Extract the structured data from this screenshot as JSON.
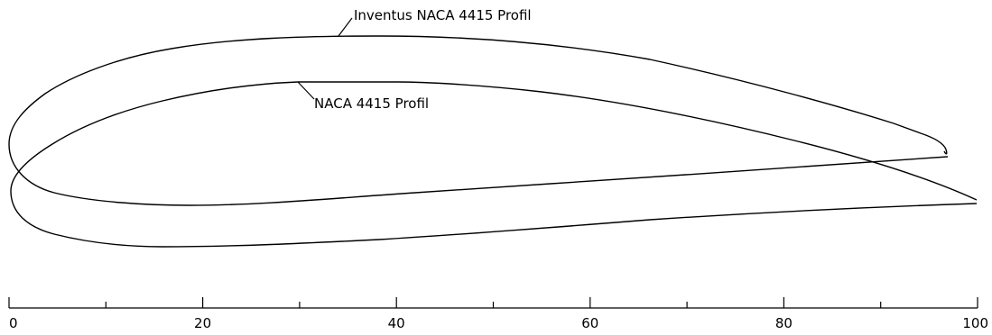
{
  "labels": {
    "outer_profile": "Inventus NACA 4415 Profil",
    "inner_profile": "NACA 4415 Profil"
  },
  "scale": {
    "min": 0,
    "max": 100,
    "major_ticks": [
      0,
      20,
      40,
      60,
      80,
      100
    ],
    "minor_ticks": [
      10,
      30,
      50,
      70,
      90
    ],
    "tick_labels": [
      "0",
      "20",
      "40",
      "60",
      "80",
      "100"
    ]
  },
  "colors": {
    "line": "#000000",
    "background": "#ffffff"
  }
}
